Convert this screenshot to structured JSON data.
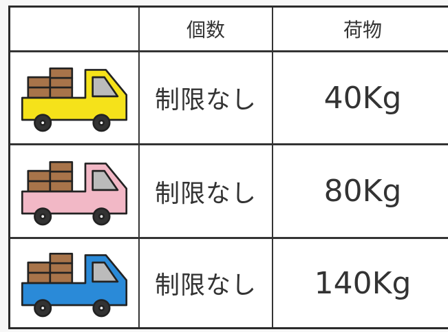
{
  "table": {
    "header": [
      "個数",
      "荷物"
    ],
    "rows": [
      [
        "制限なし",
        "40Kg"
      ],
      [
        "制限なし",
        "80Kg"
      ],
      [
        "制限なし",
        "140Kg"
      ]
    ]
  }
}
